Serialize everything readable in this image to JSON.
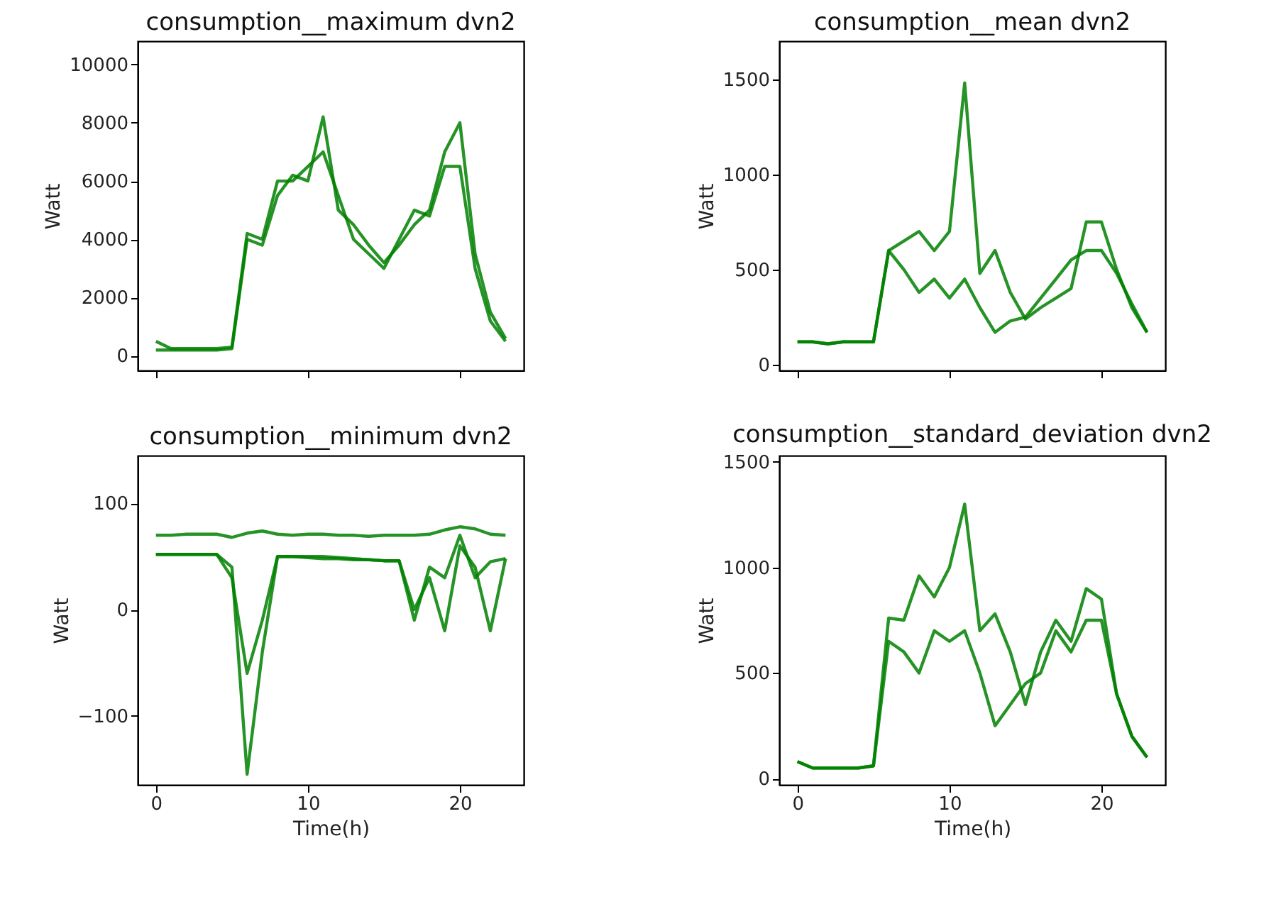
{
  "chart_data": [
    {
      "type": "line",
      "title": "consumption__maximum  dvn2",
      "ylabel": "Watt",
      "x": [
        0,
        1,
        2,
        3,
        4,
        5,
        6,
        7,
        8,
        9,
        10,
        11,
        12,
        13,
        14,
        15,
        16,
        17,
        18,
        19,
        20,
        21,
        22,
        23
      ],
      "xlim": [
        -1.2,
        24.2
      ],
      "xticks": [
        0,
        10,
        20
      ],
      "ylim": [
        -500,
        10800
      ],
      "yticks": [
        0,
        2000,
        4000,
        6000,
        8000,
        10000
      ],
      "tick_labels": "y",
      "grid": false,
      "line_style": "solid",
      "series": [
        {
          "color": "#008000",
          "values": [
            500,
            250,
            250,
            250,
            250,
            300,
            4200,
            4000,
            6000,
            6000,
            6500,
            7000,
            5500,
            4000,
            3500,
            3000,
            4000,
            5000,
            4800,
            6500,
            6500,
            3000,
            1200,
            500
          ]
        },
        {
          "color": "#008000",
          "values": [
            200,
            200,
            200,
            200,
            200,
            250,
            4000,
            3800,
            5500,
            6200,
            6000,
            8200,
            5000,
            4500,
            3800,
            3200,
            3800,
            4500,
            5000,
            7000,
            8000,
            3500,
            1500,
            600
          ]
        }
      ]
    },
    {
      "type": "line",
      "title": "consumption__mean  dvn2",
      "ylabel": "Watt",
      "x": [
        0,
        1,
        2,
        3,
        4,
        5,
        6,
        7,
        8,
        9,
        10,
        11,
        12,
        13,
        14,
        15,
        16,
        17,
        18,
        19,
        20,
        21,
        22,
        23
      ],
      "xlim": [
        -1.2,
        24.2
      ],
      "xticks": [
        0,
        10,
        20
      ],
      "ylim": [
        -30,
        1700
      ],
      "yticks": [
        0,
        500,
        1000,
        1500
      ],
      "tick_labels": "y",
      "grid": false,
      "line_style": "solid",
      "series": [
        {
          "color": "#008000",
          "values": [
            120,
            120,
            110,
            120,
            120,
            120,
            600,
            650,
            700,
            600,
            700,
            1480,
            480,
            600,
            380,
            240,
            300,
            350,
            400,
            750,
            750,
            500,
            300,
            170
          ]
        },
        {
          "color": "#008000",
          "values": [
            120,
            120,
            110,
            120,
            120,
            120,
            600,
            500,
            380,
            450,
            350,
            450,
            300,
            170,
            230,
            250,
            350,
            450,
            550,
            600,
            600,
            480,
            320,
            170
          ]
        }
      ]
    },
    {
      "type": "line",
      "title": "consumption__minimum  dvn2",
      "xlabel": "Time(h)",
      "ylabel": "Watt",
      "x": [
        0,
        1,
        2,
        3,
        4,
        5,
        6,
        7,
        8,
        9,
        10,
        11,
        12,
        13,
        14,
        15,
        16,
        17,
        18,
        19,
        20,
        21,
        22,
        23
      ],
      "xlim": [
        -1.2,
        24.2
      ],
      "xticks": [
        0,
        10,
        20
      ],
      "ylim": [
        -165,
        145
      ],
      "yticks": [
        -100,
        0,
        100
      ],
      "grid": false,
      "line_style": "solid",
      "series": [
        {
          "color": "#008000",
          "values": [
            70,
            70,
            71,
            71,
            71,
            68,
            72,
            74,
            71,
            70,
            71,
            71,
            70,
            70,
            69,
            70,
            70,
            70,
            71,
            75,
            78,
            76,
            71,
            70
          ]
        },
        {
          "color": "#008000",
          "values": [
            52,
            52,
            52,
            52,
            52,
            40,
            -155,
            -40,
            50,
            50,
            50,
            50,
            49,
            48,
            47,
            46,
            46,
            0,
            30,
            -20,
            60,
            40,
            -20,
            48
          ]
        },
        {
          "color": "#008000",
          "values": [
            52,
            52,
            52,
            52,
            52,
            30,
            -60,
            -10,
            50,
            50,
            49,
            48,
            48,
            47,
            47,
            46,
            46,
            -10,
            40,
            30,
            70,
            30,
            45,
            48
          ]
        }
      ]
    },
    {
      "type": "line",
      "title": "consumption__standard_deviation  dvn2",
      "xlabel": "Time(h)",
      "ylabel": "Watt",
      "x": [
        0,
        1,
        2,
        3,
        4,
        5,
        6,
        7,
        8,
        9,
        10,
        11,
        12,
        13,
        14,
        15,
        16,
        17,
        18,
        19,
        20,
        21,
        22,
        23
      ],
      "xlim": [
        -1.2,
        24.2
      ],
      "xticks": [
        0,
        10,
        20
      ],
      "ylim": [
        -30,
        1530
      ],
      "yticks": [
        0,
        500,
        1000,
        1500
      ],
      "grid": false,
      "line_style": "solid",
      "series": [
        {
          "color": "#008000",
          "values": [
            80,
            50,
            50,
            50,
            50,
            60,
            760,
            750,
            960,
            860,
            1000,
            1300,
            700,
            780,
            600,
            350,
            600,
            750,
            650,
            900,
            850,
            400,
            200,
            100
          ]
        },
        {
          "color": "#008000",
          "values": [
            80,
            50,
            50,
            50,
            50,
            60,
            650,
            600,
            500,
            700,
            650,
            700,
            500,
            250,
            350,
            450,
            500,
            700,
            600,
            750,
            750,
            400,
            200,
            100
          ]
        }
      ]
    }
  ]
}
